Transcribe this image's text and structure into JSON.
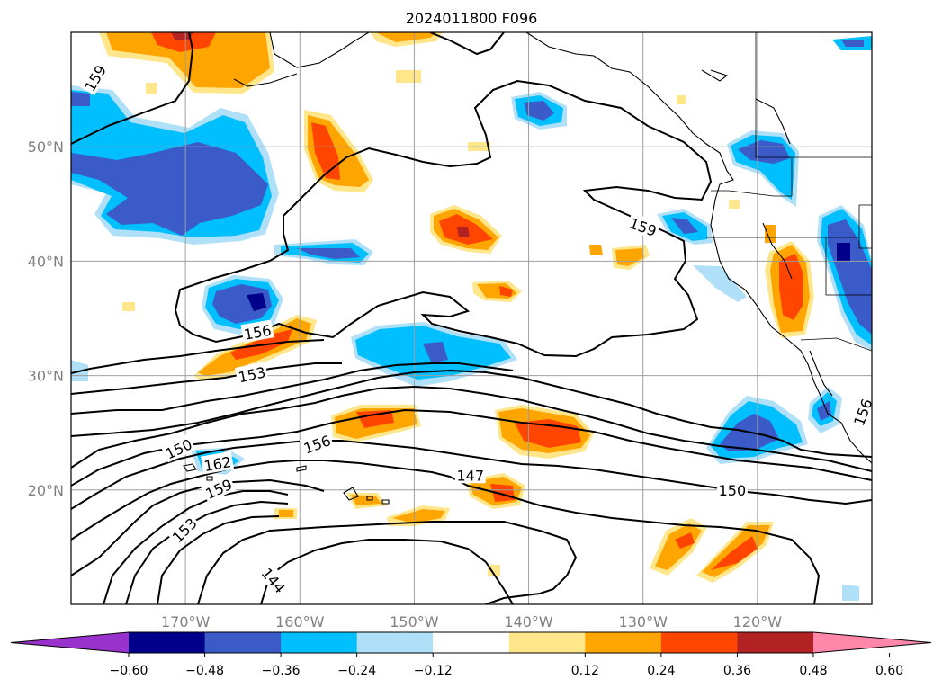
{
  "title": "2024011800 F096",
  "map": {
    "lon_range": [
      -180,
      -110
    ],
    "lat_range": [
      10,
      60
    ],
    "lon_ticks": [
      {
        "value": -170,
        "label": "170°W"
      },
      {
        "value": -160,
        "label": "160°W"
      },
      {
        "value": -150,
        "label": "150°W"
      },
      {
        "value": -140,
        "label": "140°W"
      },
      {
        "value": -130,
        "label": "130°W"
      },
      {
        "value": -120,
        "label": "120°W"
      }
    ],
    "lat_ticks": [
      {
        "value": 20,
        "label": "20°N"
      },
      {
        "value": 30,
        "label": "30°N"
      },
      {
        "value": 40,
        "label": "40°N"
      },
      {
        "value": 50,
        "label": "50°N"
      }
    ],
    "grid": true,
    "contour_labels": [
      {
        "text": "159",
        "lon": -177.9,
        "lat": 56.0,
        "angle": -60
      },
      {
        "text": "159",
        "lon": -130.0,
        "lat": 43.0,
        "angle": 20
      },
      {
        "text": "156",
        "lon": -163.7,
        "lat": 33.8,
        "angle": -10
      },
      {
        "text": "153",
        "lon": -164.2,
        "lat": 30.1,
        "angle": -12
      },
      {
        "text": "150",
        "lon": -170.6,
        "lat": 23.6,
        "angle": -25
      },
      {
        "text": "162",
        "lon": -167.2,
        "lat": 22.3,
        "angle": -10
      },
      {
        "text": "156",
        "lon": -158.5,
        "lat": 24.0,
        "angle": -20
      },
      {
        "text": "159",
        "lon": -167.1,
        "lat": 20.1,
        "angle": -25
      },
      {
        "text": "147",
        "lon": -145.1,
        "lat": 21.3,
        "angle": 0
      },
      {
        "text": "150",
        "lon": -122.2,
        "lat": 20.0,
        "angle": 0
      },
      {
        "text": "153",
        "lon": -170.1,
        "lat": 16.5,
        "angle": -45
      },
      {
        "text": "144",
        "lon": -162.3,
        "lat": 12.1,
        "angle": 50
      },
      {
        "text": "156",
        "lon": -110.8,
        "lat": 26.8,
        "angle": -70
      }
    ]
  },
  "colorbar": {
    "ticks": [
      "−0.60",
      "−0.48",
      "−0.36",
      "−0.24",
      "−0.12",
      "0.12",
      "0.24",
      "0.36",
      "0.48",
      "0.60"
    ],
    "colors": [
      "#9932cc",
      "#00008b",
      "#3a5bc8",
      "#00bfff",
      "#b0e0f8",
      "#ffffff",
      "#ffe68a",
      "#ffa500",
      "#ff4500",
      "#b22222",
      "#ff88aa"
    ]
  },
  "colors": {
    "neg1": "#b0e0f8",
    "neg2": "#00bfff",
    "neg3": "#3a5bc8",
    "neg4": "#00008b",
    "pos1": "#ffe68a",
    "pos2": "#ffa500",
    "pos3": "#ff4500",
    "pos4": "#b22222"
  }
}
